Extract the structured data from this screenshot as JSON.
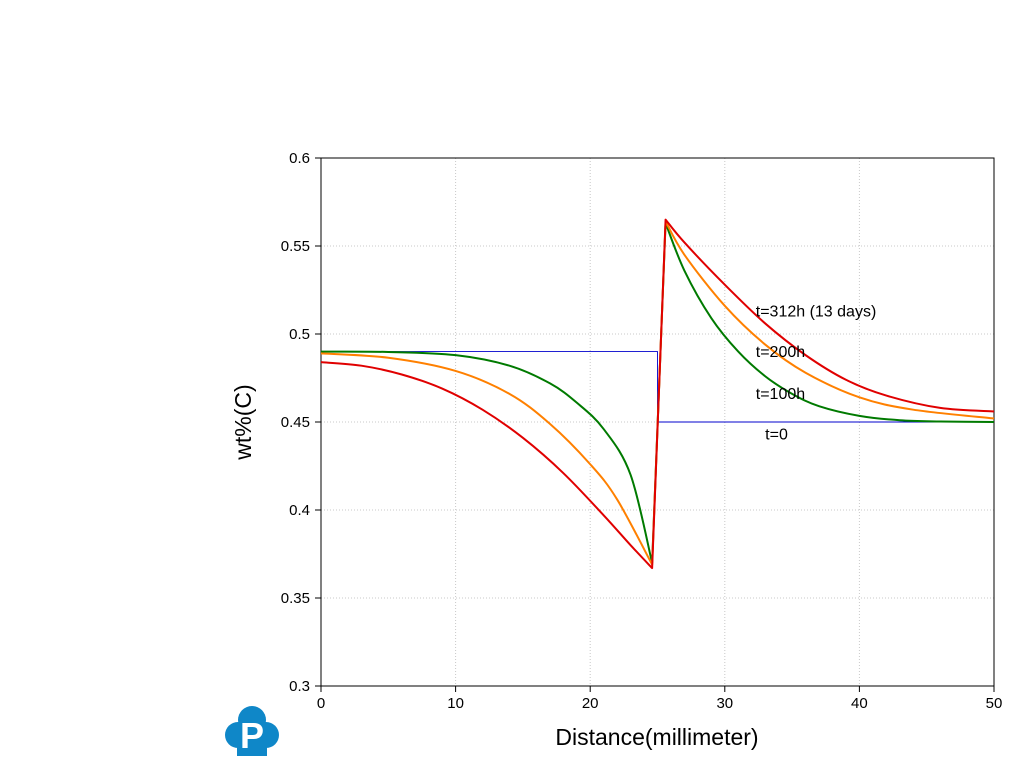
{
  "chart_data": {
    "type": "line",
    "title": "",
    "xlabel": "Distance(millimeter)",
    "ylabel": "wt%(C)",
    "xlim": [
      0,
      50
    ],
    "ylim": [
      0.3,
      0.6
    ],
    "xticks": [
      0,
      10,
      20,
      30,
      40,
      50
    ],
    "xtick_labels": [
      "0",
      "10",
      "20",
      "30",
      "40",
      "50"
    ],
    "yticks": [
      0.3,
      0.35,
      0.4,
      0.45,
      0.5,
      0.55,
      0.6
    ],
    "ytick_labels": [
      "0.3",
      "0.35",
      "0.4",
      "0.45",
      "0.5",
      "0.55",
      "0.6"
    ],
    "grid": true,
    "legend": "none",
    "series": [
      {
        "name": "t=0",
        "color": "#0000cc",
        "x": [
          0,
          25,
          25,
          50
        ],
        "values": [
          0.49,
          0.49,
          0.45,
          0.45
        ]
      },
      {
        "name": "t=100h",
        "color": "#007a00",
        "x": [
          0,
          5,
          10,
          14,
          17,
          19,
          21,
          23,
          24.6,
          25.6,
          27,
          29,
          31,
          33,
          35,
          37,
          40,
          43,
          46,
          50
        ],
        "values": [
          0.49,
          0.4898,
          0.488,
          0.482,
          0.472,
          0.461,
          0.446,
          0.42,
          0.37,
          0.563,
          0.536,
          0.509,
          0.49,
          0.476,
          0.466,
          0.459,
          0.4535,
          0.451,
          0.4503,
          0.45
        ]
      },
      {
        "name": "t=200h",
        "color": "#ff8000",
        "x": [
          0,
          5,
          10,
          14,
          17,
          20,
          22,
          24.6,
          25.6,
          27,
          30,
          33,
          36,
          40,
          44,
          50
        ],
        "values": [
          0.489,
          0.4865,
          0.479,
          0.466,
          0.449,
          0.426,
          0.406,
          0.369,
          0.564,
          0.545,
          0.516,
          0.494,
          0.478,
          0.464,
          0.457,
          0.452
        ]
      },
      {
        "name": "t=312h (13 days)",
        "color": "#e00000",
        "x": [
          0,
          3,
          6,
          9,
          12,
          15,
          18,
          21,
          23,
          24.6,
          25.6,
          27,
          30,
          33,
          36,
          39,
          42,
          46,
          50
        ],
        "values": [
          0.484,
          0.482,
          0.477,
          0.469,
          0.457,
          0.441,
          0.421,
          0.397,
          0.38,
          0.367,
          0.565,
          0.552,
          0.528,
          0.506,
          0.488,
          0.474,
          0.465,
          0.458,
          0.456
        ]
      }
    ],
    "annotations": [
      {
        "text": "t=312h (13 days)",
        "x": 32.3,
        "y": 0.51
      },
      {
        "text": "t=200h",
        "x": 32.3,
        "y": 0.487
      },
      {
        "text": "t=100h",
        "x": 32.3,
        "y": 0.463
      },
      {
        "text": "t=0",
        "x": 33.0,
        "y": 0.44
      }
    ]
  },
  "branding": {
    "logo_letter": "P",
    "logo_color": "#0f87c8"
  }
}
